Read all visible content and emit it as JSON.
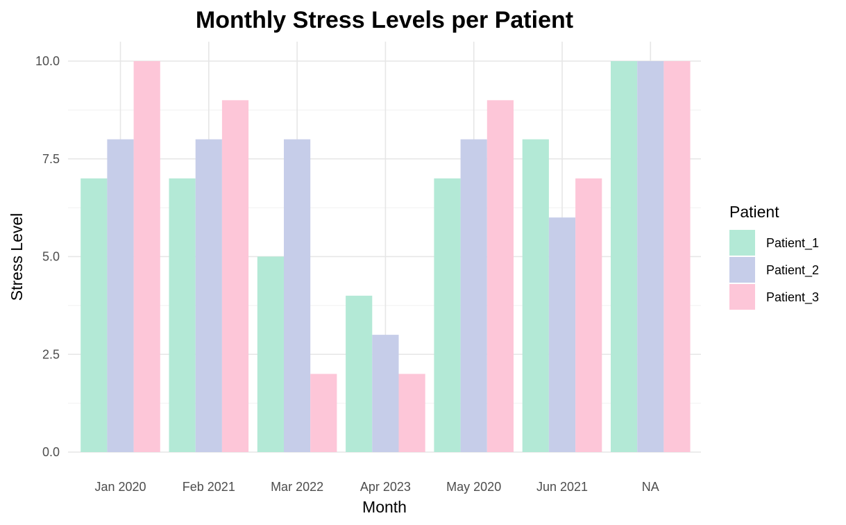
{
  "chart_data": {
    "type": "bar",
    "title": "Monthly Stress Levels per Patient",
    "xlabel": "Month",
    "ylabel": "Stress Level",
    "categories": [
      "Jan 2020",
      "Feb 2021",
      "Mar 2022",
      "Apr 2023",
      "May 2020",
      "Jun 2021",
      "NA"
    ],
    "series": [
      {
        "name": "Patient_1",
        "color": "#b3e9d6",
        "values": [
          7,
          7,
          5,
          4,
          7,
          8,
          10
        ]
      },
      {
        "name": "Patient_2",
        "color": "#c6cde9",
        "values": [
          8,
          8,
          8,
          3,
          8,
          6,
          10
        ]
      },
      {
        "name": "Patient_3",
        "color": "#fdc6d8",
        "values": [
          10,
          9,
          2,
          2,
          9,
          7,
          10
        ]
      }
    ],
    "ylim": [
      0,
      10
    ],
    "yticks": [
      "0.0",
      "2.5",
      "5.0",
      "7.5",
      "10.0"
    ],
    "grid": true,
    "legend": {
      "title": "Patient",
      "position": "right"
    }
  }
}
